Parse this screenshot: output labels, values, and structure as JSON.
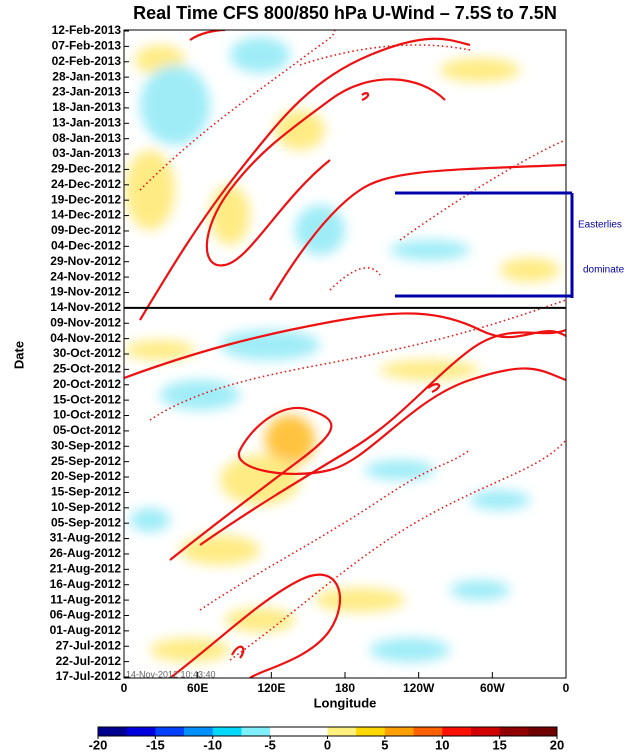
{
  "chart_data": {
    "type": "hovmoller",
    "title": "Real Time CFS 800/850 hPa U-Wind – 7.5S to 7.5N",
    "x_label": "Longitude",
    "y_label": "Date",
    "xlim": [
      0,
      360
    ],
    "xticks": [
      0,
      {
        "value": 60,
        "label": "60E"
      },
      {
        "value": 120,
        "label": "120E"
      },
      180,
      {
        "value": 240,
        "label": "120W"
      },
      {
        "value": 300,
        "label": "60W"
      },
      {
        "value": 360,
        "label": "0"
      }
    ],
    "yticks": [
      "12-Feb-2013",
      "07-Feb-2013",
      "02-Feb-2013",
      "28-Jan-2013",
      "23-Jan-2013",
      "18-Jan-2013",
      "13-Jan-2013",
      "08-Jan-2013",
      "03-Jan-2013",
      "29-Dec-2012",
      "24-Dec-2012",
      "19-Dec-2012",
      "14-Dec-2012",
      "09-Dec-2012",
      "04-Dec-2012",
      "29-Nov-2012",
      "24-Nov-2012",
      "19-Nov-2012",
      "14-Nov-2012",
      "09-Nov-2012",
      "04-Nov-2012",
      "30-Oct-2012",
      "25-Oct-2012",
      "20-Oct-2012",
      "15-Oct-2012",
      "10-Oct-2012",
      "05-Oct-2012",
      "30-Sep-2012",
      "25-Sep-2012",
      "20-Sep-2012",
      "15-Sep-2012",
      "10-Sep-2012",
      "05-Sep-2012",
      "31-Aug-2012",
      "26-Aug-2012",
      "21-Aug-2012",
      "16-Aug-2012",
      "11-Aug-2012",
      "06-Aug-2012",
      "01-Aug-2012",
      "27-Jul-2012",
      "22-Jul-2012",
      "17-Jul-2012"
    ],
    "annotations": [
      "Easterlies",
      "dominate",
      "14-Nov-2012 10:43:40"
    ],
    "colorbar": {
      "lim": [
        -20,
        20
      ],
      "ticks": [
        -20,
        -15,
        -10,
        -5,
        0,
        5,
        10,
        15,
        20
      ],
      "colors": [
        "#00008f",
        "#0000df",
        "#0040ff",
        "#0090ff",
        "#00d8ff",
        "#80f0ff",
        "#ffffff",
        "#ffffff",
        "#fff080",
        "#ffd800",
        "#ffa000",
        "#ff6000",
        "#ff1000",
        "#d00000",
        "#900000",
        "#700000"
      ]
    }
  }
}
